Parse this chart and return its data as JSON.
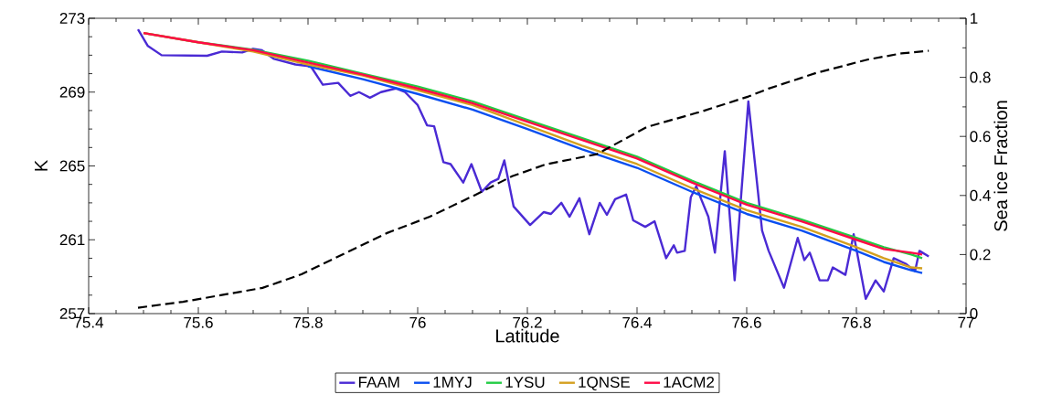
{
  "chart_data": {
    "type": "line",
    "xlabel": "Latitude",
    "ylabel": "K",
    "y2label": "Sea ice Fraction",
    "xlim": [
      75.4,
      77
    ],
    "xticks": [
      75.4,
      75.6,
      75.8,
      76,
      76.2,
      76.4,
      76.6,
      76.8,
      77
    ],
    "ylim": [
      257,
      273
    ],
    "yticks": [
      257,
      261,
      265,
      269,
      273
    ],
    "y2lim": [
      0,
      1
    ],
    "y2ticks": [
      0,
      0.2,
      0.4,
      0.6,
      0.8,
      1
    ],
    "legend": "bottom",
    "grid": false,
    "marker": "none",
    "series": [
      {
        "name": "FAAM",
        "color": "#4a2ad4",
        "line_style": "solid",
        "x": [
          75.49,
          75.508,
          75.533,
          75.616,
          75.643,
          75.68,
          75.7,
          75.716,
          75.738,
          75.777,
          75.805,
          75.827,
          75.855,
          75.877,
          75.893,
          75.913,
          75.933,
          75.96,
          75.977,
          76.0,
          76.017,
          76.03,
          76.047,
          76.06,
          76.083,
          76.098,
          76.117,
          76.133,
          76.147,
          76.158,
          76.175,
          76.205,
          76.23,
          76.243,
          76.262,
          76.277,
          76.295,
          76.313,
          76.332,
          76.345,
          76.36,
          76.38,
          76.393,
          76.415,
          76.432,
          76.453,
          76.467,
          76.473,
          76.487,
          76.498,
          76.508,
          76.517,
          76.53,
          76.542,
          76.56,
          76.578,
          76.603,
          76.628,
          76.64,
          76.668,
          76.693,
          76.705,
          76.715,
          76.733,
          76.748,
          76.757,
          76.78,
          76.795,
          76.817,
          76.835,
          76.85,
          76.868,
          76.89,
          76.907,
          76.915,
          76.932
        ],
        "values": [
          272.4,
          271.5,
          271.0,
          270.97,
          271.2,
          271.15,
          271.35,
          271.27,
          270.8,
          270.5,
          270.4,
          269.4,
          269.5,
          268.8,
          269.0,
          268.7,
          269.0,
          269.2,
          269.0,
          268.3,
          267.2,
          267.15,
          265.2,
          265.1,
          264.1,
          265.1,
          263.6,
          264.1,
          264.3,
          265.3,
          262.8,
          261.8,
          262.5,
          262.4,
          263.0,
          262.25,
          263.25,
          261.3,
          263.0,
          262.35,
          263.2,
          263.45,
          262.05,
          261.7,
          262.0,
          260.0,
          260.7,
          260.3,
          260.4,
          263.3,
          263.9,
          263.2,
          262.25,
          260.3,
          265.8,
          258.8,
          268.5,
          261.5,
          260.4,
          258.4,
          261.1,
          259.9,
          260.3,
          258.8,
          258.8,
          259.5,
          259.1,
          261.3,
          257.8,
          258.8,
          258.2,
          260.0,
          259.7,
          259.3,
          260.4,
          260.1
        ]
      },
      {
        "name": "1MYJ",
        "color": "#0a4ff0",
        "line_style": "solid",
        "x": [
          75.8,
          75.9,
          76.0,
          76.1,
          76.2,
          76.3,
          76.4,
          76.5,
          76.6,
          76.7,
          76.8,
          76.85,
          76.9,
          76.92
        ],
        "values": [
          270.4,
          269.7,
          268.9,
          268.05,
          267.0,
          265.9,
          264.9,
          263.6,
          262.4,
          261.5,
          260.4,
          259.8,
          259.35,
          259.2
        ]
      },
      {
        "name": "1YSU",
        "color": "#22cc44",
        "line_style": "solid",
        "x": [
          75.5,
          75.6,
          75.7,
          75.8,
          75.9,
          76.0,
          76.1,
          76.2,
          76.3,
          76.4,
          76.5,
          76.6,
          76.7,
          76.8,
          76.85,
          76.9,
          76.92
        ],
        "values": [
          272.2,
          271.7,
          271.3,
          270.7,
          270.0,
          269.3,
          268.5,
          267.5,
          266.5,
          265.5,
          264.2,
          263.0,
          262.1,
          261.1,
          260.6,
          260.2,
          260.0
        ]
      },
      {
        "name": "1QNSE",
        "color": "#d4a020",
        "line_style": "solid",
        "x": [
          75.5,
          75.6,
          75.7,
          75.8,
          75.9,
          76.0,
          76.1,
          76.2,
          76.3,
          76.4,
          76.5,
          76.6,
          76.7,
          76.8,
          76.85,
          76.9,
          76.92
        ],
        "values": [
          272.2,
          271.7,
          271.2,
          270.5,
          269.9,
          269.1,
          268.3,
          267.2,
          266.1,
          265.1,
          263.8,
          262.6,
          261.7,
          260.6,
          260.0,
          259.5,
          259.45
        ]
      },
      {
        "name": "1ACM2",
        "color": "#ff0a46",
        "line_style": "solid",
        "x": [
          75.5,
          75.6,
          75.7,
          75.8,
          75.9,
          76.0,
          76.1,
          76.2,
          76.3,
          76.4,
          76.5,
          76.6,
          76.7,
          76.8,
          76.85,
          76.9,
          76.92
        ],
        "values": [
          272.2,
          271.7,
          271.27,
          270.6,
          269.95,
          269.2,
          268.4,
          267.4,
          266.4,
          265.4,
          264.1,
          262.9,
          262.0,
          261.0,
          260.5,
          260.3,
          260.2
        ]
      },
      {
        "axis": "y2",
        "color": "#000000",
        "line_style": "dashed",
        "x": [
          75.49,
          75.572,
          75.717,
          75.788,
          75.867,
          75.943,
          76.022,
          76.105,
          76.172,
          76.233,
          76.327,
          76.418,
          76.517,
          76.603,
          76.64,
          76.727,
          76.82,
          76.882,
          76.932
        ],
        "values": [
          0.02,
          0.04,
          0.087,
          0.133,
          0.204,
          0.272,
          0.328,
          0.402,
          0.465,
          0.505,
          0.54,
          0.632,
          0.684,
          0.735,
          0.762,
          0.815,
          0.86,
          0.881,
          0.89
        ]
      }
    ]
  }
}
